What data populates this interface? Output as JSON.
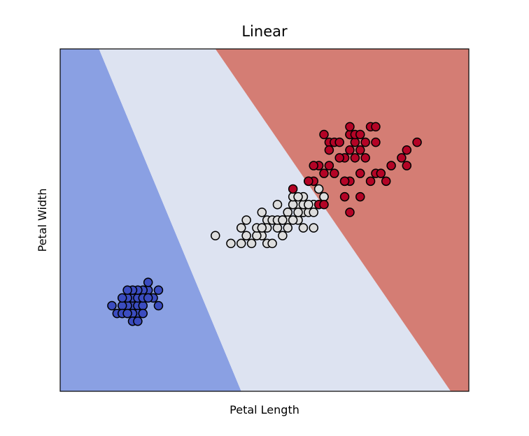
{
  "chart_data": {
    "type": "scatter",
    "title": "Linear",
    "xlabel": "Petal Length",
    "ylabel": "Petal Width",
    "xlim": [
      0.0,
      7.9
    ],
    "ylim": [
      -0.9,
      3.5
    ],
    "xticks": [],
    "yticks": [],
    "grid": false,
    "legend": "none",
    "decision_regions": {
      "colors": {
        "0": "#8aa0e3",
        "1": "#dde3f1",
        "2": "#d47d74"
      },
      "boundaries": [
        {
          "between": [
            0,
            1
          ],
          "top": [
            0.75,
            3.5
          ],
          "bottom": [
            3.5,
            -0.9
          ]
        },
        {
          "between": [
            1,
            2
          ],
          "top": [
            3.0,
            3.5
          ],
          "bottom": [
            7.55,
            -0.9
          ]
        }
      ]
    },
    "class_colors": {
      "0": "#3b4cc0",
      "1": "#dddddd",
      "2": "#b40426"
    },
    "series": [
      {
        "class": 0,
        "points": [
          [
            1.4,
            0.2
          ],
          [
            1.3,
            0.2
          ],
          [
            1.5,
            0.2
          ],
          [
            1.5,
            0.1
          ],
          [
            1.4,
            0.3
          ],
          [
            1.7,
            0.4
          ],
          [
            1.6,
            0.2
          ],
          [
            1.4,
            0.1
          ],
          [
            1.1,
            0.1
          ],
          [
            1.2,
            0.2
          ],
          [
            1.0,
            0.2
          ],
          [
            1.7,
            0.5
          ],
          [
            1.9,
            0.2
          ],
          [
            1.6,
            0.4
          ],
          [
            1.5,
            0.3
          ],
          [
            1.3,
            0.3
          ],
          [
            1.9,
            0.4
          ],
          [
            1.2,
            0.3
          ],
          [
            1.8,
            0.3
          ],
          [
            1.6,
            0.1
          ],
          [
            1.5,
            0.4
          ],
          [
            1.4,
            0.4
          ],
          [
            1.6,
            0.3
          ],
          [
            1.7,
            0.3
          ],
          [
            1.3,
            0.4
          ],
          [
            1.2,
            0.1
          ],
          [
            1.4,
            0.0
          ],
          [
            1.5,
            0.0
          ],
          [
            1.3,
            0.1
          ]
        ]
      },
      {
        "class": 1,
        "points": [
          [
            4.7,
            1.4
          ],
          [
            4.5,
            1.5
          ],
          [
            4.9,
            1.5
          ],
          [
            4.0,
            1.3
          ],
          [
            4.6,
            1.5
          ],
          [
            3.3,
            1.0
          ],
          [
            4.6,
            1.3
          ],
          [
            3.9,
            1.4
          ],
          [
            3.5,
            1.0
          ],
          [
            4.2,
            1.5
          ],
          [
            4.0,
            1.0
          ],
          [
            4.7,
            1.4
          ],
          [
            3.6,
            1.3
          ],
          [
            4.4,
            1.4
          ],
          [
            4.5,
            1.5
          ],
          [
            4.1,
            1.0
          ],
          [
            3.9,
            1.1
          ],
          [
            4.8,
            1.8
          ],
          [
            4.9,
            1.5
          ],
          [
            4.7,
            1.2
          ],
          [
            4.3,
            1.3
          ],
          [
            4.4,
            1.4
          ],
          [
            4.8,
            1.4
          ],
          [
            5.0,
            1.7
          ],
          [
            3.8,
            1.1
          ],
          [
            3.7,
            1.0
          ],
          [
            5.1,
            1.6
          ],
          [
            4.5,
            1.6
          ],
          [
            4.7,
            1.5
          ],
          [
            4.4,
            1.3
          ],
          [
            4.1,
            1.3
          ],
          [
            4.0,
            1.2
          ],
          [
            4.6,
            1.4
          ],
          [
            4.2,
            1.2
          ],
          [
            4.2,
            1.3
          ],
          [
            4.3,
            1.3
          ],
          [
            3.0,
            1.1
          ],
          [
            4.8,
            1.5
          ],
          [
            4.7,
            1.6
          ],
          [
            3.6,
            1.1
          ],
          [
            4.9,
            1.2
          ],
          [
            4.3,
            1.1
          ],
          [
            4.6,
            1.6
          ],
          [
            3.8,
            1.2
          ],
          [
            3.9,
            1.2
          ],
          [
            4.5,
            1.3
          ],
          [
            3.5,
            1.2
          ],
          [
            5.1,
            1.6
          ],
          [
            4.4,
            1.2
          ],
          [
            4.9,
            1.4
          ]
        ]
      },
      {
        "class": 2,
        "points": [
          [
            6.0,
            2.5
          ],
          [
            5.1,
            1.9
          ],
          [
            5.9,
            2.1
          ],
          [
            5.6,
            1.8
          ],
          [
            5.8,
            2.2
          ],
          [
            6.6,
            2.1
          ],
          [
            4.5,
            1.7
          ],
          [
            6.3,
            1.8
          ],
          [
            6.1,
            2.5
          ],
          [
            5.3,
            1.9
          ],
          [
            5.5,
            2.1
          ],
          [
            5.0,
            2.0
          ],
          [
            5.1,
            2.4
          ],
          [
            5.5,
            1.8
          ],
          [
            6.7,
            2.2
          ],
          [
            6.9,
            2.3
          ],
          [
            5.0,
            1.5
          ],
          [
            5.7,
            2.3
          ],
          [
            4.9,
            2.0
          ],
          [
            6.7,
            2.0
          ],
          [
            4.9,
            1.8
          ],
          [
            5.7,
            2.1
          ],
          [
            6.0,
            1.8
          ],
          [
            4.8,
            1.8
          ],
          [
            5.8,
            1.6
          ],
          [
            6.1,
            1.9
          ],
          [
            6.4,
            2.0
          ],
          [
            5.6,
            2.2
          ],
          [
            5.1,
            1.5
          ],
          [
            5.6,
            1.4
          ],
          [
            6.1,
            2.3
          ],
          [
            5.6,
            2.4
          ],
          [
            5.5,
            1.8
          ],
          [
            5.4,
            2.1
          ],
          [
            5.6,
            2.4
          ],
          [
            5.2,
            2.3
          ],
          [
            5.3,
            2.3
          ],
          [
            5.2,
            2.0
          ],
          [
            5.4,
            2.3
          ],
          [
            5.6,
            2.5
          ],
          [
            5.9,
            2.3
          ],
          [
            5.5,
            1.6
          ],
          [
            6.2,
            1.9
          ],
          [
            5.7,
            2.4
          ],
          [
            5.8,
            1.9
          ],
          [
            5.8,
            2.4
          ],
          [
            5.2,
            2.2
          ]
        ]
      }
    ]
  }
}
